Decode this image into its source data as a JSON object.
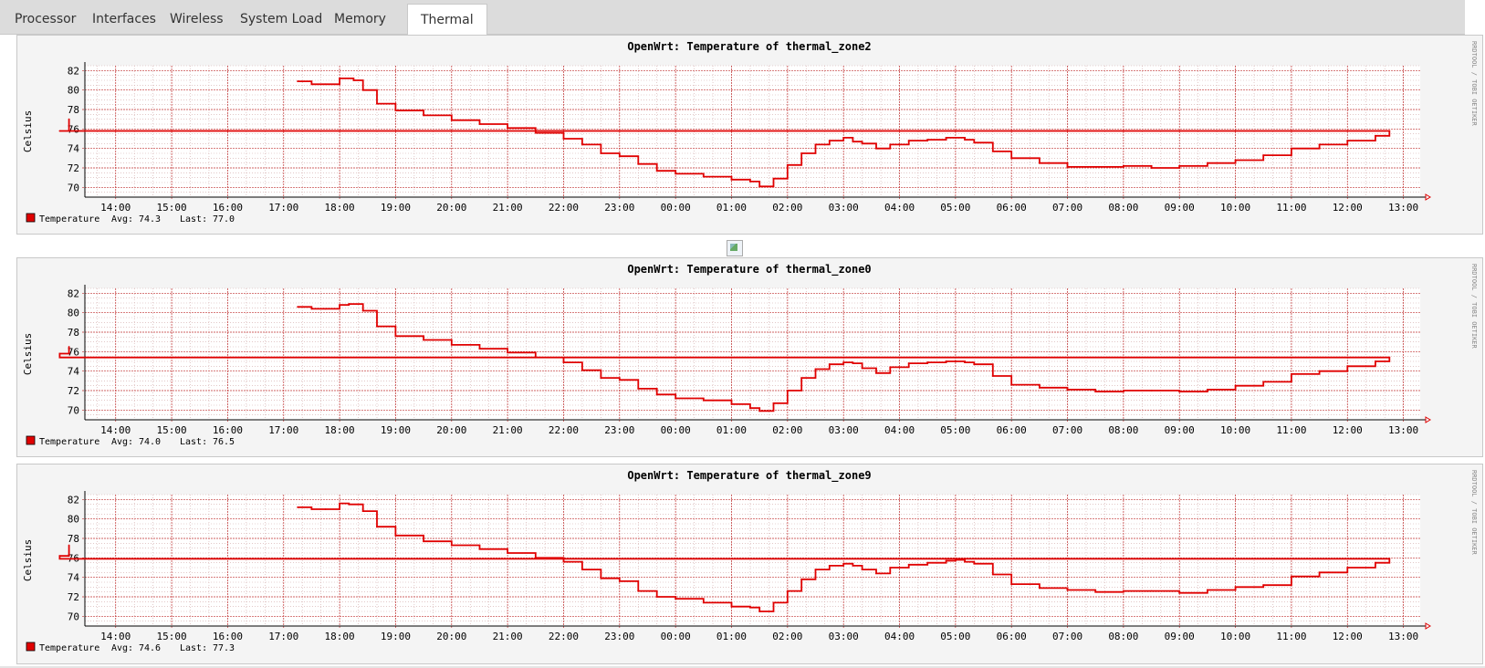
{
  "tabs": [
    {
      "label": "Processor",
      "active": false
    },
    {
      "label": "Interfaces",
      "active": false
    },
    {
      "label": "Wireless",
      "active": false
    },
    {
      "label": "System Load",
      "active": false
    },
    {
      "label": "Memory",
      "active": false
    },
    {
      "label": "Thermal",
      "active": true
    }
  ],
  "rrd_watermark": "RRDTOOL / TOBI OETIKER",
  "colors": {
    "line": "#e00000",
    "grid_minor": "#d0a8a8",
    "grid_major": "#c03030",
    "background": "#ffffff",
    "frame": "#f4f4f4"
  },
  "chart_data": [
    {
      "type": "line",
      "title": "OpenWrt: Temperature of thermal_zone2",
      "ylabel": "Celsius",
      "ylim": [
        69,
        82.5
      ],
      "yticks": [
        70,
        72,
        74,
        76,
        78,
        80,
        82
      ],
      "x_range_hours": [
        13.45,
        13.3
      ],
      "xtick_labels": [
        "14:00",
        "15:00",
        "16:00",
        "17:00",
        "18:00",
        "19:00",
        "20:00",
        "21:00",
        "22:00",
        "23:00",
        "00:00",
        "01:00",
        "02:00",
        "03:00",
        "04:00",
        "05:00",
        "06:00",
        "07:00",
        "08:00",
        "09:00",
        "10:00",
        "11:00",
        "12:00",
        "13:00"
      ],
      "series": [
        {
          "name": "Temperature",
          "x": [
            "17:15",
            "17:30",
            "17:45",
            "18:00",
            "18:15",
            "18:25",
            "18:40",
            "19:00",
            "19:30",
            "20:00",
            "20:30",
            "21:00",
            "21:30",
            "22:00",
            "22:20",
            "22:40",
            "23:00",
            "23:20",
            "23:40",
            "00:00",
            "00:30",
            "01:00",
            "01:20",
            "01:30",
            "01:45",
            "02:00",
            "02:15",
            "02:30",
            "02:45",
            "03:00",
            "03:10",
            "03:20",
            "03:35",
            "03:50",
            "04:10",
            "04:30",
            "04:50",
            "05:00",
            "05:10",
            "05:20",
            "05:40",
            "06:00",
            "06:30",
            "07:00",
            "07:30",
            "08:00",
            "08:30",
            "09:00",
            "09:30",
            "10:00",
            "10:30",
            "11:00",
            "11:30",
            "12:00",
            "12:30",
            "12:45",
            "13:00",
            "13:10"
          ],
          "y": [
            80.9,
            80.6,
            80.6,
            81.2,
            81.0,
            80.0,
            78.6,
            77.9,
            77.4,
            76.9,
            76.5,
            76.1,
            75.6,
            75.0,
            74.4,
            73.5,
            73.2,
            72.4,
            71.7,
            71.4,
            71.1,
            70.8,
            70.6,
            70.1,
            70.9,
            72.3,
            73.5,
            74.4,
            74.8,
            75.1,
            74.7,
            74.5,
            74.0,
            74.4,
            74.8,
            74.9,
            75.1,
            75.1,
            74.9,
            74.6,
            73.7,
            73.0,
            72.5,
            72.1,
            72.1,
            72.2,
            72.0,
            72.2,
            72.5,
            72.8,
            73.3,
            74.0,
            74.4,
            74.8,
            75.3,
            75.8,
            75.8,
            77.0
          ]
        }
      ],
      "legend": {
        "label": "Temperature",
        "avg_label": "Avg:",
        "avg": "74.3",
        "last_label": "Last:",
        "last": "77.0"
      }
    },
    {
      "type": "line",
      "title": "OpenWrt: Temperature of thermal_zone0",
      "ylabel": "Celsius",
      "ylim": [
        69,
        82.5
      ],
      "yticks": [
        70,
        72,
        74,
        76,
        78,
        80,
        82
      ],
      "x_range_hours": [
        13.45,
        13.3
      ],
      "xtick_labels": [
        "14:00",
        "15:00",
        "16:00",
        "17:00",
        "18:00",
        "19:00",
        "20:00",
        "21:00",
        "22:00",
        "23:00",
        "00:00",
        "01:00",
        "02:00",
        "03:00",
        "04:00",
        "05:00",
        "06:00",
        "07:00",
        "08:00",
        "09:00",
        "10:00",
        "11:00",
        "12:00",
        "13:00"
      ],
      "series": [
        {
          "name": "Temperature",
          "x": [
            "17:15",
            "17:30",
            "17:45",
            "18:00",
            "18:10",
            "18:25",
            "18:40",
            "19:00",
            "19:30",
            "20:00",
            "20:30",
            "21:00",
            "21:30",
            "22:00",
            "22:20",
            "22:40",
            "23:00",
            "23:20",
            "23:40",
            "00:00",
            "00:30",
            "01:00",
            "01:20",
            "01:30",
            "01:45",
            "02:00",
            "02:15",
            "02:30",
            "02:45",
            "03:00",
            "03:10",
            "03:20",
            "03:35",
            "03:50",
            "04:10",
            "04:30",
            "04:50",
            "05:00",
            "05:10",
            "05:20",
            "05:40",
            "06:00",
            "06:30",
            "07:00",
            "07:30",
            "08:00",
            "08:30",
            "09:00",
            "09:30",
            "10:00",
            "10:30",
            "11:00",
            "11:30",
            "12:00",
            "12:30",
            "12:45",
            "13:00",
            "13:10"
          ],
          "y": [
            80.6,
            80.4,
            80.4,
            80.8,
            80.9,
            80.2,
            78.6,
            77.6,
            77.2,
            76.7,
            76.3,
            75.9,
            75.4,
            74.9,
            74.1,
            73.3,
            73.1,
            72.2,
            71.6,
            71.2,
            71.0,
            70.6,
            70.2,
            69.9,
            70.7,
            72.0,
            73.3,
            74.2,
            74.7,
            74.9,
            74.8,
            74.3,
            73.8,
            74.4,
            74.8,
            74.9,
            75.0,
            75.0,
            74.9,
            74.7,
            73.5,
            72.6,
            72.3,
            72.1,
            71.9,
            72.0,
            72.0,
            71.9,
            72.1,
            72.5,
            72.9,
            73.7,
            74.0,
            74.5,
            75.0,
            75.4,
            75.8,
            76.5
          ]
        }
      ],
      "legend": {
        "label": "Temperature",
        "avg_label": "Avg:",
        "avg": "74.0",
        "last_label": "Last:",
        "last": "76.5"
      }
    },
    {
      "type": "line",
      "title": "OpenWrt: Temperature of thermal_zone9",
      "ylabel": "Celsius",
      "ylim": [
        69,
        82.5
      ],
      "yticks": [
        70,
        72,
        74,
        76,
        78,
        80,
        82
      ],
      "x_range_hours": [
        13.45,
        13.3
      ],
      "xtick_labels": [
        "14:00",
        "15:00",
        "16:00",
        "17:00",
        "18:00",
        "19:00",
        "20:00",
        "21:00",
        "22:00",
        "23:00",
        "00:00",
        "01:00",
        "02:00",
        "03:00",
        "04:00",
        "05:00",
        "06:00",
        "07:00",
        "08:00",
        "09:00",
        "10:00",
        "11:00",
        "12:00",
        "13:00"
      ],
      "series": [
        {
          "name": "Temperature",
          "x": [
            "17:15",
            "17:30",
            "17:45",
            "18:00",
            "18:10",
            "18:25",
            "18:40",
            "19:00",
            "19:30",
            "20:00",
            "20:30",
            "21:00",
            "21:30",
            "22:00",
            "22:20",
            "22:40",
            "23:00",
            "23:20",
            "23:40",
            "00:00",
            "00:30",
            "01:00",
            "01:20",
            "01:30",
            "01:45",
            "02:00",
            "02:15",
            "02:30",
            "02:45",
            "03:00",
            "03:10",
            "03:20",
            "03:35",
            "03:50",
            "04:10",
            "04:30",
            "04:50",
            "05:00",
            "05:10",
            "05:20",
            "05:40",
            "06:00",
            "06:30",
            "07:00",
            "07:30",
            "08:00",
            "08:30",
            "09:00",
            "09:30",
            "10:00",
            "10:30",
            "11:00",
            "11:30",
            "12:00",
            "12:30",
            "12:45",
            "13:00",
            "13:10"
          ],
          "y": [
            81.2,
            81.0,
            81.0,
            81.6,
            81.5,
            80.8,
            79.2,
            78.3,
            77.7,
            77.3,
            76.9,
            76.5,
            76.0,
            75.6,
            74.8,
            73.9,
            73.6,
            72.6,
            72.0,
            71.8,
            71.4,
            71.0,
            70.9,
            70.5,
            71.4,
            72.6,
            73.8,
            74.8,
            75.2,
            75.4,
            75.2,
            74.8,
            74.4,
            75.0,
            75.3,
            75.5,
            75.7,
            75.8,
            75.6,
            75.4,
            74.3,
            73.3,
            72.9,
            72.7,
            72.5,
            72.6,
            72.6,
            72.4,
            72.7,
            73.0,
            73.2,
            74.1,
            74.5,
            75.0,
            75.5,
            75.9,
            76.2,
            77.3
          ]
        }
      ],
      "legend": {
        "label": "Temperature",
        "avg_label": "Avg:",
        "avg": "74.6",
        "last_label": "Last:",
        "last": "77.3"
      }
    }
  ]
}
